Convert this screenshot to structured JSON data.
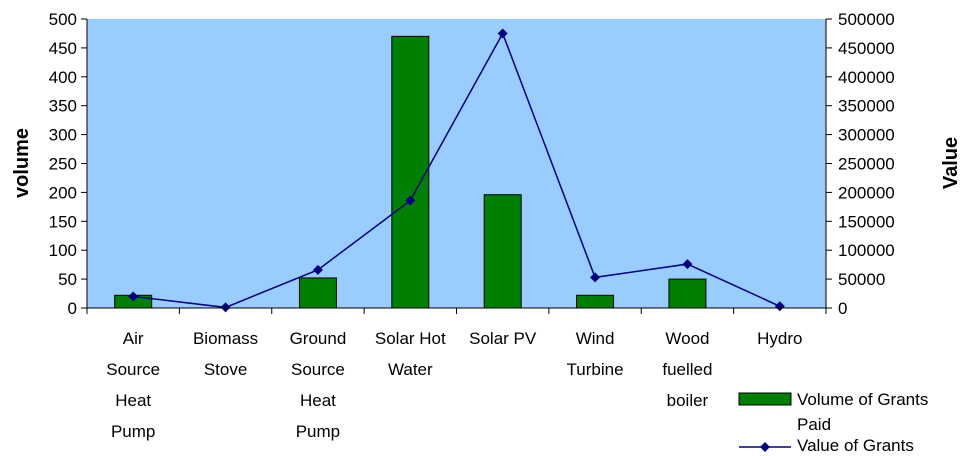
{
  "chart_data": {
    "type": "bar",
    "categories": [
      [
        "Air",
        "Source",
        "Heat",
        "Pump"
      ],
      [
        "Biomass",
        "Stove"
      ],
      [
        "Ground",
        "Source",
        "Heat",
        "Pump"
      ],
      [
        "Solar Hot",
        "Water"
      ],
      [
        "Solar PV"
      ],
      [
        "Wind",
        "Turbine"
      ],
      [
        "Wood",
        "fuelled",
        "boiler"
      ],
      [
        "Hydro"
      ]
    ],
    "series": [
      {
        "name": "Volume of Grants Paid",
        "kind": "bar",
        "axis": "left",
        "color": "#008000",
        "values": [
          22,
          0,
          52,
          470,
          196,
          22,
          50,
          0
        ]
      },
      {
        "name": "Value of Grants",
        "kind": "line",
        "axis": "right",
        "color": "#000080",
        "values": [
          20000,
          1000,
          66000,
          186000,
          475000,
          53000,
          76000,
          3000
        ]
      }
    ],
    "legend_lines": [
      [
        "Volume of Grants",
        "Paid"
      ],
      [
        "Value of Grants"
      ]
    ],
    "ylabel": "volume",
    "y2label": "Value",
    "ylim": [
      0,
      500
    ],
    "y2lim": [
      0,
      500000
    ],
    "yticks": [
      "0",
      "50",
      "100",
      "150",
      "200",
      "250",
      "300",
      "350",
      "400",
      "450",
      "500"
    ],
    "y2ticks": [
      "0",
      "50000",
      "100000",
      "150000",
      "200000",
      "250000",
      "300000",
      "350000",
      "400000",
      "450000",
      "500000"
    ],
    "plot_background": "#99CCFF",
    "grid": false,
    "legend": "bottom-right"
  }
}
